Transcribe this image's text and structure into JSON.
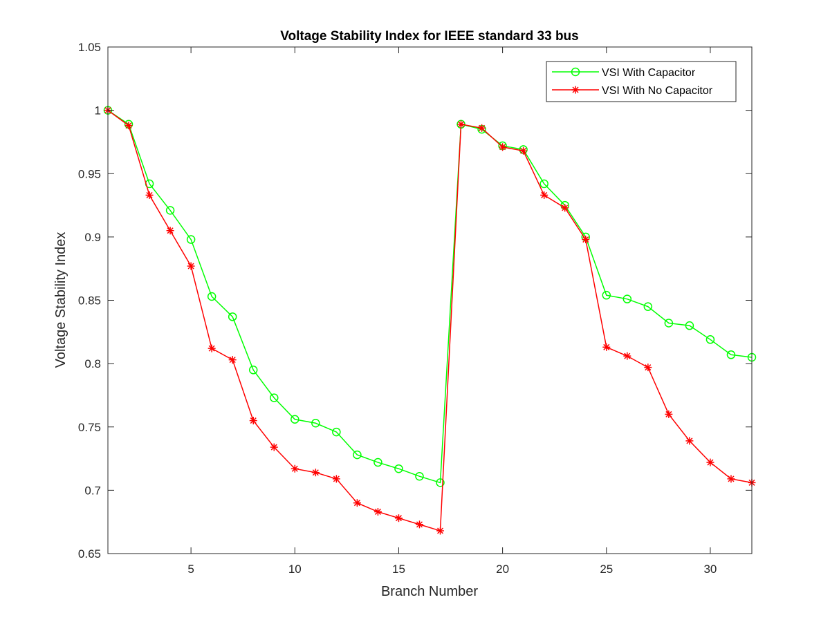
{
  "chart_data": {
    "type": "line",
    "title": "Voltage Stability Index for IEEE standard 33 bus",
    "xlabel": "Branch Number",
    "ylabel": "Voltage Stability Index",
    "xlim": [
      1,
      32
    ],
    "ylim": [
      0.65,
      1.05
    ],
    "xticks": [
      5,
      10,
      15,
      20,
      25,
      30
    ],
    "yticks": [
      0.65,
      0.7,
      0.75,
      0.8,
      0.85,
      0.9,
      0.95,
      1,
      1.05
    ],
    "ytick_labels": [
      "0.65",
      "0.7",
      "0.75",
      "0.8",
      "0.85",
      "0.9",
      "0.95",
      "1",
      "1.05"
    ],
    "grid": false,
    "legend_position": "top-right",
    "x": [
      1,
      2,
      3,
      4,
      5,
      6,
      7,
      8,
      9,
      10,
      11,
      12,
      13,
      14,
      15,
      16,
      17,
      18,
      19,
      20,
      21,
      22,
      23,
      24,
      25,
      26,
      27,
      28,
      29,
      30,
      31,
      32
    ],
    "series": [
      {
        "name": "VSI With Capacitor",
        "color": "#00ff00",
        "marker": "circle",
        "values": [
          1.0,
          0.989,
          0.942,
          0.921,
          0.898,
          0.853,
          0.837,
          0.795,
          0.773,
          0.756,
          0.753,
          0.746,
          0.728,
          0.722,
          0.717,
          0.711,
          0.706,
          0.989,
          0.985,
          0.972,
          0.969,
          0.942,
          0.925,
          0.9,
          0.854,
          0.851,
          0.845,
          0.832,
          0.83,
          0.819,
          0.807,
          0.805
        ]
      },
      {
        "name": "VSI With No Capacitor",
        "color": "#ff0000",
        "marker": "asterisk",
        "values": [
          1.0,
          0.988,
          0.933,
          0.905,
          0.877,
          0.812,
          0.803,
          0.755,
          0.734,
          0.717,
          0.714,
          0.709,
          0.69,
          0.683,
          0.678,
          0.673,
          0.668,
          0.989,
          0.986,
          0.971,
          0.968,
          0.933,
          0.923,
          0.898,
          0.813,
          0.806,
          0.797,
          0.76,
          0.739,
          0.722,
          0.709,
          0.706
        ]
      }
    ]
  }
}
